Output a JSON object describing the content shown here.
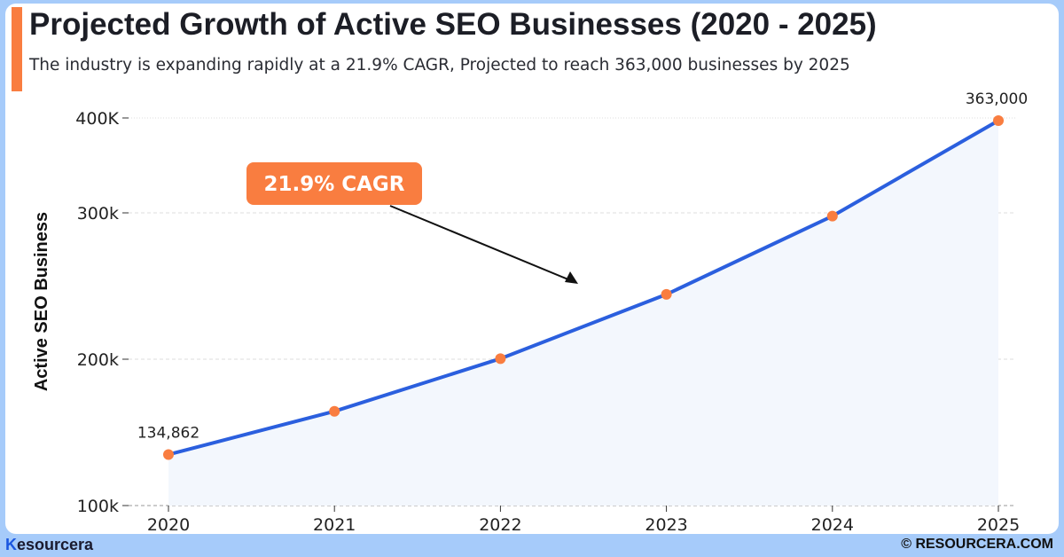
{
  "title": "Projected Growth of Active SEO Businesses (2020 - 2025)",
  "subtitle": "The industry is expanding rapidly at a 21.9% CAGR, Projected to reach 363,000 businesses by 2025",
  "footer": {
    "logo": "Resourcera",
    "logo_rest": "esourcera",
    "copyright": "© RESOURCERA.COM"
  },
  "colors": {
    "accent": "#f97d40",
    "line": "#2b5fde",
    "fill": "#f3f7fd",
    "background": "#a6cbfa"
  },
  "chart_data": {
    "type": "line",
    "title": "Projected Growth of Active SEO Businesses (2020 - 2025)",
    "xlabel": "",
    "ylabel": "Active  SEO Business",
    "categories": [
      "2020",
      "2021",
      "2022",
      "2023",
      "2024",
      "2025"
    ],
    "values": [
      134862,
      164400,
      200400,
      244300,
      297800,
      363000
    ],
    "data_labels": [
      {
        "index": 0,
        "text": "134,862"
      },
      {
        "index": 5,
        "text": "363,000"
      }
    ],
    "yticks": [
      {
        "value": 100000,
        "label": "100k"
      },
      {
        "value": 200000,
        "label": "200k"
      },
      {
        "value": 300000,
        "label": "300k"
      },
      {
        "value": 400000,
        "label": "400K"
      }
    ],
    "annotation": "21.9% CAGR",
    "grid": true,
    "area_fill": true
  }
}
